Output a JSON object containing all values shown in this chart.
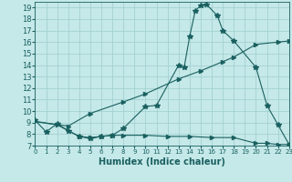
{
  "xlabel": "Humidex (Indice chaleur)",
  "xlim": [
    0,
    23
  ],
  "ylim": [
    7,
    19.5
  ],
  "yticks": [
    7,
    8,
    9,
    10,
    11,
    12,
    13,
    14,
    15,
    16,
    17,
    18,
    19
  ],
  "xticks": [
    0,
    1,
    2,
    3,
    4,
    5,
    6,
    7,
    8,
    9,
    10,
    11,
    12,
    13,
    14,
    15,
    16,
    17,
    18,
    19,
    20,
    21,
    22,
    23
  ],
  "bg_color": "#c5e8e8",
  "grid_color": "#9ecece",
  "line_color": "#1a6060",
  "line1_x": [
    0,
    1,
    2,
    3,
    4,
    5,
    6,
    7,
    8,
    10,
    11,
    13,
    13.5,
    14,
    14.5,
    15,
    15.5,
    16.5,
    17,
    18,
    20,
    21,
    22,
    23
  ],
  "line1_y": [
    9.2,
    8.2,
    8.9,
    8.3,
    7.8,
    7.6,
    7.8,
    7.9,
    8.5,
    10.4,
    10.5,
    14.0,
    13.8,
    16.5,
    18.7,
    19.2,
    19.3,
    18.3,
    17.0,
    16.1,
    13.8,
    10.5,
    8.8,
    7.1
  ],
  "line2_x": [
    0,
    3,
    5,
    8,
    10,
    13,
    15,
    17,
    18,
    20,
    22,
    23
  ],
  "line2_y": [
    9.1,
    8.7,
    9.8,
    10.8,
    11.5,
    12.8,
    13.5,
    14.3,
    14.7,
    15.8,
    16.0,
    16.1
  ],
  "line3_x": [
    0,
    2,
    4,
    5,
    6,
    7,
    8,
    10,
    12,
    14,
    16,
    18,
    20,
    21,
    22,
    23
  ],
  "line3_y": [
    9.1,
    8.8,
    7.8,
    7.7,
    7.8,
    7.9,
    7.9,
    7.9,
    7.8,
    7.8,
    7.7,
    7.7,
    7.2,
    7.2,
    7.1,
    7.1
  ],
  "xlabel_fontsize": 7,
  "ytick_fontsize": 6,
  "xtick_fontsize": 5
}
